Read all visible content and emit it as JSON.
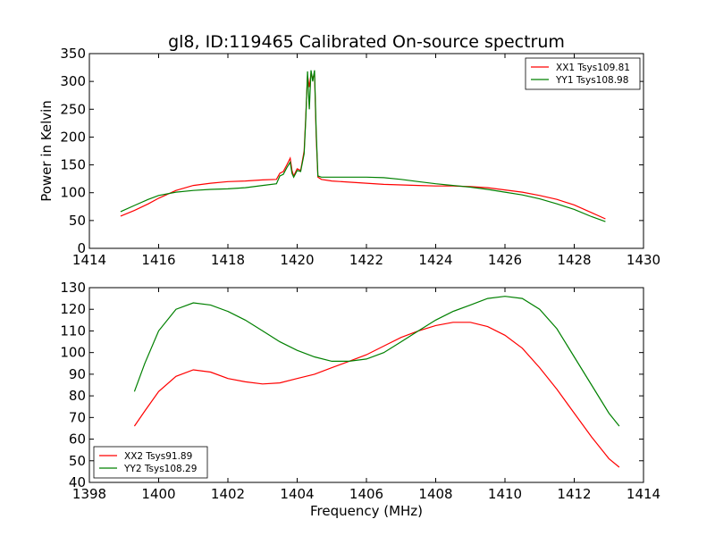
{
  "chart_data": [
    {
      "type": "line",
      "title": "gl8, ID:119465 Calibrated On-source spectrum",
      "xlabel": "",
      "ylabel": "Power in Kelvin",
      "xlim": [
        1414,
        1430
      ],
      "ylim": [
        0,
        350
      ],
      "xticks": [
        1414,
        1416,
        1418,
        1420,
        1422,
        1424,
        1426,
        1428,
        1430
      ],
      "yticks": [
        0,
        50,
        100,
        150,
        200,
        250,
        300,
        350
      ],
      "legend_position": "top-right",
      "series": [
        {
          "name": "XX1 Tsys109.81",
          "color": "#ff0000",
          "x": [
            1414.9,
            1415.3,
            1415.7,
            1416.0,
            1416.5,
            1417.0,
            1417.5,
            1418.0,
            1418.5,
            1419.0,
            1419.4,
            1419.5,
            1419.6,
            1419.7,
            1419.8,
            1419.85,
            1419.9,
            1420.0,
            1420.1,
            1420.2,
            1420.25,
            1420.3,
            1420.35,
            1420.4,
            1420.45,
            1420.5,
            1420.55,
            1420.6,
            1420.7,
            1421.0,
            1421.5,
            1422.0,
            1422.5,
            1423.0,
            1423.5,
            1424.0,
            1424.5,
            1425.0,
            1425.5,
            1426.0,
            1426.5,
            1427.0,
            1427.5,
            1428.0,
            1428.5,
            1428.9
          ],
          "y": [
            58,
            68,
            80,
            90,
            104,
            113,
            117,
            120,
            121,
            123,
            124,
            135,
            138,
            150,
            162,
            140,
            130,
            143,
            140,
            175,
            240,
            310,
            290,
            315,
            305,
            315,
            200,
            128,
            124,
            121,
            119,
            117,
            115,
            114,
            113,
            112,
            112,
            111,
            109,
            105,
            101,
            95,
            88,
            78,
            64,
            53
          ]
        },
        {
          "name": "YY1 Tsys108.98",
          "color": "#008000",
          "x": [
            1414.9,
            1415.3,
            1415.7,
            1416.0,
            1416.5,
            1417.0,
            1417.5,
            1418.0,
            1418.5,
            1419.0,
            1419.4,
            1419.5,
            1419.6,
            1419.7,
            1419.8,
            1419.85,
            1419.9,
            1420.0,
            1420.1,
            1420.2,
            1420.25,
            1420.3,
            1420.35,
            1420.4,
            1420.45,
            1420.5,
            1420.55,
            1420.6,
            1420.7,
            1421.0,
            1421.5,
            1422.0,
            1422.5,
            1423.0,
            1423.5,
            1424.0,
            1424.5,
            1425.0,
            1425.5,
            1426.0,
            1426.5,
            1427.0,
            1427.5,
            1428.0,
            1428.5,
            1428.9
          ],
          "y": [
            66,
            77,
            88,
            95,
            101,
            104,
            106,
            107,
            109,
            113,
            116,
            130,
            133,
            145,
            155,
            135,
            128,
            140,
            138,
            170,
            235,
            318,
            250,
            320,
            300,
            320,
            210,
            130,
            128,
            128,
            128,
            128,
            127,
            124,
            120,
            116,
            113,
            110,
            106,
            101,
            96,
            89,
            80,
            70,
            57,
            48
          ]
        }
      ]
    },
    {
      "type": "line",
      "title": "",
      "xlabel": "Frequency (MHz)",
      "ylabel": "",
      "xlim": [
        1398,
        1414
      ],
      "ylim": [
        40,
        130
      ],
      "xticks": [
        1398,
        1400,
        1402,
        1404,
        1406,
        1408,
        1410,
        1412,
        1414
      ],
      "yticks": [
        40,
        50,
        60,
        70,
        80,
        90,
        100,
        110,
        120,
        130
      ],
      "legend_position": "bottom-left",
      "series": [
        {
          "name": "XX2 Tsys91.89",
          "color": "#ff0000",
          "x": [
            1399.3,
            1399.6,
            1400.0,
            1400.5,
            1401.0,
            1401.5,
            1402.0,
            1402.5,
            1403.0,
            1403.5,
            1404.0,
            1404.5,
            1405.0,
            1405.5,
            1406.0,
            1406.5,
            1407.0,
            1407.5,
            1408.0,
            1408.5,
            1409.0,
            1409.5,
            1410.0,
            1410.5,
            1411.0,
            1411.5,
            1412.0,
            1412.5,
            1413.0,
            1413.3
          ],
          "y": [
            66,
            73,
            82,
            89,
            92,
            91,
            88,
            86.5,
            85.5,
            86,
            88,
            90,
            93,
            96,
            99,
            103,
            107,
            110,
            112.5,
            114,
            114,
            112,
            108,
            102,
            93,
            83,
            72,
            61,
            51,
            47
          ]
        },
        {
          "name": "YY2 Tsys108.29",
          "color": "#008000",
          "x": [
            1399.3,
            1399.6,
            1400.0,
            1400.5,
            1401.0,
            1401.5,
            1402.0,
            1402.5,
            1403.0,
            1403.5,
            1404.0,
            1404.5,
            1405.0,
            1405.5,
            1406.0,
            1406.5,
            1407.0,
            1407.5,
            1408.0,
            1408.5,
            1409.0,
            1409.5,
            1410.0,
            1410.5,
            1411.0,
            1411.5,
            1412.0,
            1412.5,
            1413.0,
            1413.3
          ],
          "y": [
            82,
            95,
            110,
            120,
            123,
            122,
            119,
            115,
            110,
            105,
            101,
            98,
            96,
            96,
            97,
            100,
            105,
            110,
            115,
            119,
            122,
            125,
            126,
            125,
            120,
            111,
            98,
            85,
            72,
            66
          ]
        }
      ]
    }
  ]
}
